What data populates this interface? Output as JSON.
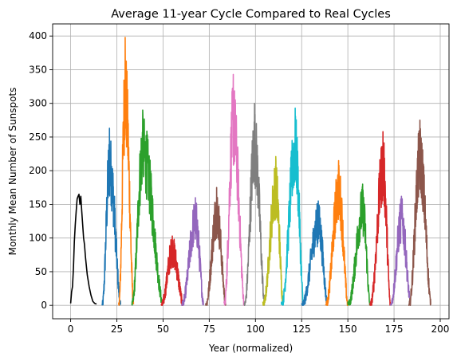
{
  "chart_data": {
    "type": "line",
    "title": "Average 11-year Cycle Compared to Real Cycles",
    "xlabel": "Year (normalized)",
    "ylabel": "Monthly Mean Number of Sunspots",
    "xlim": [
      -9.75,
      204.75
    ],
    "ylim": [
      -19.9,
      418
    ],
    "xticks": [
      0,
      25,
      50,
      75,
      100,
      125,
      150,
      175,
      200
    ],
    "yticks": [
      0,
      50,
      100,
      150,
      200,
      250,
      300,
      350,
      400
    ],
    "grid": true,
    "series": [
      {
        "color": "#000000",
        "start": 0,
        "end": 14,
        "peakYear": 4.8,
        "peak": 160,
        "values": [
          [
            0,
            3
          ],
          [
            0.5,
            20
          ],
          [
            1,
            28
          ],
          [
            1.5,
            55
          ],
          [
            2,
            95
          ],
          [
            2.5,
            120
          ],
          [
            3,
            140
          ],
          [
            3.5,
            158
          ],
          [
            4,
            162
          ],
          [
            4.5,
            165
          ],
          [
            5,
            150
          ],
          [
            5.5,
            162
          ],
          [
            6,
            140
          ],
          [
            6.5,
            120
          ],
          [
            7,
            100
          ],
          [
            7.5,
            90
          ],
          [
            8,
            72
          ],
          [
            9,
            45
          ],
          [
            10,
            28
          ],
          [
            11,
            15
          ],
          [
            12,
            6
          ],
          [
            13,
            3
          ],
          [
            14,
            2
          ]
        ]
      },
      {
        "color": "#1f77b4",
        "start": 17,
        "end": 27,
        "peakYear": 21,
        "peak": 263
      },
      {
        "color": "#ff7f0e",
        "start": 26,
        "end": 34,
        "peakYear": 29.5,
        "peak": 398
      },
      {
        "color": "#2ca02c",
        "start": 33,
        "end": 50,
        "peakYear": 39,
        "peak": 290
      },
      {
        "color": "#d62728",
        "start": 49,
        "end": 61,
        "peakYear": 55,
        "peak": 103
      },
      {
        "color": "#9467bd",
        "start": 60,
        "end": 72,
        "peakYear": 67.5,
        "peak": 160
      },
      {
        "color": "#8c564b",
        "start": 73,
        "end": 84,
        "peakYear": 79,
        "peak": 175
      },
      {
        "color": "#e377c2",
        "start": 83,
        "end": 94,
        "peakYear": 88,
        "peak": 343
      },
      {
        "color": "#7f7f7f",
        "start": 94,
        "end": 105,
        "peakYear": 99.5,
        "peak": 300
      },
      {
        "color": "#bcbd22",
        "start": 104,
        "end": 115,
        "peakYear": 111,
        "peak": 221
      },
      {
        "color": "#17becf",
        "start": 114,
        "end": 126,
        "peakYear": 121.5,
        "peak": 293
      },
      {
        "color": "#1f77b4",
        "start": 125,
        "end": 139,
        "peakYear": 134,
        "peak": 155
      },
      {
        "color": "#ff7f0e",
        "start": 138,
        "end": 150,
        "peakYear": 145,
        "peak": 215
      },
      {
        "color": "#2ca02c",
        "start": 150,
        "end": 162,
        "peakYear": 158,
        "peak": 180
      },
      {
        "color": "#d62728",
        "start": 162,
        "end": 173,
        "peakYear": 169,
        "peak": 258
      },
      {
        "color": "#9467bd",
        "start": 173,
        "end": 184,
        "peakYear": 179,
        "peak": 162
      },
      {
        "color": "#8c564b",
        "start": 183,
        "end": 195,
        "peakYear": 189,
        "peak": 275
      }
    ]
  }
}
